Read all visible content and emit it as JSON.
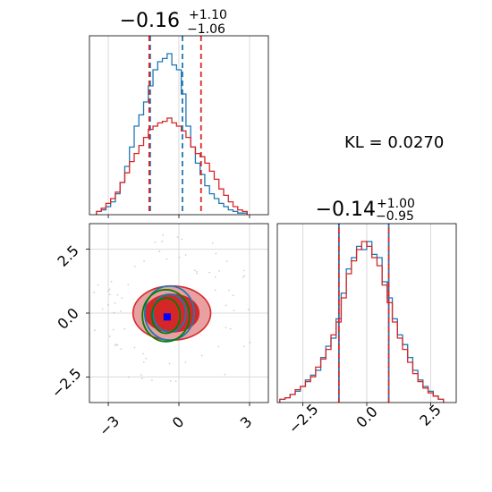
{
  "chart_data": [
    {
      "type": "histogram",
      "panel": "marginal-x",
      "title": {
        "median": "−0.16",
        "plus": "+1.10",
        "minus": "−1.06"
      },
      "xlim": [
        -3.8,
        3.8
      ],
      "grid": true,
      "series": [
        {
          "color": "#1f77b4",
          "x": [
            -3.4,
            -3.2,
            -3.0,
            -2.8,
            -2.6,
            -2.4,
            -2.2,
            -2.0,
            -1.8,
            -1.6,
            -1.4,
            -1.2,
            -1.0,
            -0.8,
            -0.6,
            -0.4,
            -0.2,
            0.0,
            0.2,
            0.4,
            0.6,
            0.8,
            1.0,
            1.2,
            1.4,
            1.6,
            1.8,
            2.0,
            2.2,
            2.4,
            2.6,
            2.8
          ],
          "counts": [
            0.02,
            0.03,
            0.05,
            0.08,
            0.13,
            0.2,
            0.3,
            0.42,
            0.55,
            0.62,
            0.7,
            0.8,
            0.9,
            0.95,
            0.97,
            1.0,
            0.93,
            0.9,
            0.75,
            0.55,
            0.42,
            0.32,
            0.25,
            0.18,
            0.13,
            0.1,
            0.07,
            0.05,
            0.03,
            0.02,
            0.01,
            0.01
          ]
        },
        {
          "color": "#d62728",
          "x": [
            -3.4,
            -3.2,
            -3.0,
            -2.8,
            -2.6,
            -2.4,
            -2.2,
            -2.0,
            -1.8,
            -1.6,
            -1.4,
            -1.2,
            -1.0,
            -0.8,
            -0.6,
            -0.4,
            -0.2,
            0.0,
            0.2,
            0.4,
            0.6,
            0.8,
            1.0,
            1.2,
            1.4,
            1.6,
            1.8,
            2.0,
            2.2,
            2.4,
            2.6,
            2.8
          ],
          "counts": [
            0.02,
            0.04,
            0.07,
            0.1,
            0.14,
            0.2,
            0.26,
            0.33,
            0.38,
            0.43,
            0.48,
            0.53,
            0.55,
            0.57,
            0.58,
            0.6,
            0.57,
            0.55,
            0.52,
            0.48,
            0.42,
            0.38,
            0.36,
            0.32,
            0.27,
            0.22,
            0.16,
            0.12,
            0.08,
            0.05,
            0.03,
            0.02
          ]
        }
      ],
      "quantiles": [
        {
          "color": "#1f77b4",
          "x": [
            -1.22,
            0.15
          ]
        },
        {
          "color": "#d62728",
          "x": [
            -1.26,
            0.94
          ]
        }
      ]
    },
    {
      "type": "contour",
      "panel": "joint",
      "xlim": [
        -3.8,
        3.8
      ],
      "ylim": [
        -3.5,
        3.5
      ],
      "xticks": [
        "−3",
        "0",
        "3"
      ],
      "yticks": [
        "2.5",
        "0.0",
        "−2.5"
      ],
      "grid": true,
      "marker": {
        "x": -0.5,
        "y": -0.15,
        "color": "#0000ff"
      },
      "contours": [
        {
          "color": "#d62728",
          "fill": "#e8a0a0",
          "cx": -0.3,
          "cy": 0.0,
          "rx": [
            3.3,
            2.3
          ],
          "ry": [
            2.3,
            1.6
          ]
        },
        {
          "color": "#1f77b4",
          "cx": -0.4,
          "cy": 0.0,
          "rx": [
            2.1,
            1.4
          ],
          "ry": [
            2.3,
            1.6
          ]
        },
        {
          "color": "#008000",
          "cx": -0.55,
          "cy": -0.1,
          "rx": [
            2.0,
            1.2
          ],
          "ry": [
            2.2,
            1.5
          ]
        }
      ]
    },
    {
      "type": "histogram",
      "panel": "marginal-y",
      "title": {
        "median": "−0.14",
        "plus": "+1.00",
        "minus": "−0.95"
      },
      "xlim": [
        -3.5,
        3.5
      ],
      "xticks": [
        "−2.5",
        "0.0",
        "2.5"
      ],
      "grid": true,
      "series": [
        {
          "color": "#1f77b4",
          "x": [
            -3.3,
            -3.1,
            -2.9,
            -2.7,
            -2.5,
            -2.3,
            -2.1,
            -1.9,
            -1.7,
            -1.5,
            -1.3,
            -1.1,
            -0.9,
            -0.7,
            -0.5,
            -0.3,
            -0.1,
            0.1,
            0.3,
            0.5,
            0.7,
            0.9,
            1.1,
            1.3,
            1.5,
            1.7,
            1.9,
            2.1,
            2.3,
            2.5,
            2.7,
            2.9
          ],
          "counts": [
            0.02,
            0.03,
            0.05,
            0.07,
            0.1,
            0.14,
            0.17,
            0.2,
            0.28,
            0.35,
            0.4,
            0.52,
            0.68,
            0.83,
            0.9,
            0.97,
            0.95,
            1.0,
            0.92,
            0.9,
            0.75,
            0.65,
            0.52,
            0.42,
            0.36,
            0.28,
            0.2,
            0.14,
            0.1,
            0.07,
            0.04,
            0.02
          ]
        },
        {
          "color": "#d62728",
          "x": [
            -3.3,
            -3.1,
            -2.9,
            -2.7,
            -2.5,
            -2.3,
            -2.1,
            -1.9,
            -1.7,
            -1.5,
            -1.3,
            -1.1,
            -0.9,
            -0.7,
            -0.5,
            -0.3,
            -0.1,
            0.1,
            0.3,
            0.5,
            0.7,
            0.9,
            1.1,
            1.3,
            1.5,
            1.7,
            1.9,
            2.1,
            2.3,
            2.5,
            2.7,
            2.9
          ],
          "counts": [
            0.02,
            0.03,
            0.05,
            0.08,
            0.1,
            0.13,
            0.16,
            0.22,
            0.27,
            0.33,
            0.42,
            0.5,
            0.65,
            0.8,
            0.88,
            0.95,
            1.0,
            0.97,
            0.9,
            0.85,
            0.73,
            0.62,
            0.5,
            0.4,
            0.33,
            0.25,
            0.18,
            0.13,
            0.09,
            0.06,
            0.04,
            0.02
          ]
        }
      ],
      "quantiles": [
        {
          "color": "#1f77b4",
          "x": [
            -1.09,
            0.86
          ]
        },
        {
          "color": "#d62728",
          "x": [
            -1.09,
            0.86
          ]
        }
      ]
    }
  ],
  "annotation": {
    "text": "KL = 0.0270"
  }
}
